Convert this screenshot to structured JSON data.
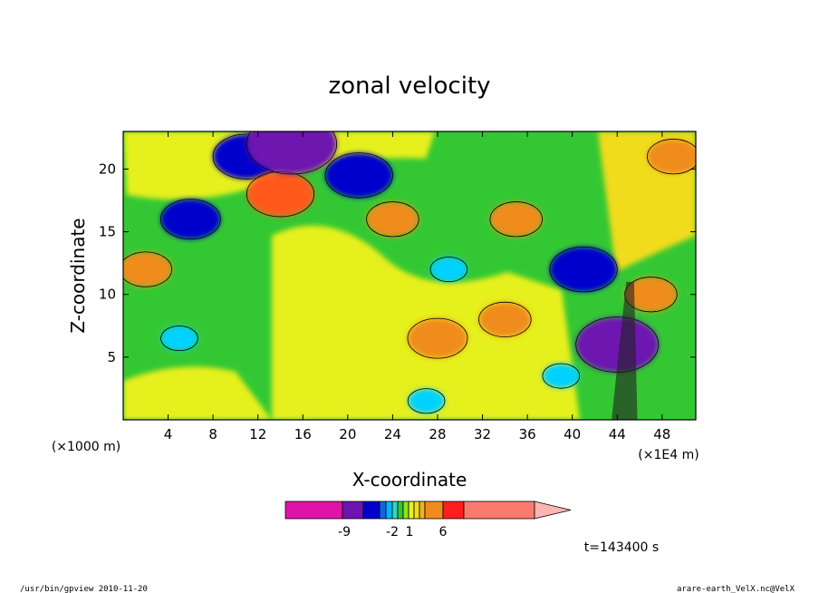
{
  "chart_data": {
    "type": "heatmap",
    "title": "zonal velocity",
    "xlabel": "X-coordinate",
    "ylabel": "Z-coordinate",
    "x_unit": "(×1E4 m)",
    "y_unit": "(×1000 m)",
    "xlim": [
      0,
      51
    ],
    "ylim": [
      0,
      23
    ],
    "x_ticks": [
      4,
      8,
      12,
      16,
      20,
      24,
      28,
      32,
      36,
      40,
      44,
      48
    ],
    "y_ticks": [
      5,
      10,
      15,
      20
    ],
    "colorbar": {
      "tick_labels": [
        "-9",
        "-2",
        "1",
        "6"
      ],
      "colors": [
        "#e013a8",
        "#6d13b0",
        "#0000cc",
        "#1464e0",
        "#00b4ff",
        "#33d2c8",
        "#33c833",
        "#8ce61e",
        "#e6f01e",
        "#f0dc1e",
        "#f0b41e",
        "#f08c1e",
        "#ff1e1e",
        "#fa7a6e",
        "#ffb4b4"
      ]
    },
    "timestamp": "t=143400 s",
    "features": [
      {
        "x": 2,
        "z": 12,
        "u": 4
      },
      {
        "x": 6,
        "z": 16,
        "u": -5
      },
      {
        "x": 11,
        "z": 21,
        "u": -6
      },
      {
        "x": 14,
        "z": 18,
        "u": 6
      },
      {
        "x": 15,
        "z": 22,
        "u": -9
      },
      {
        "x": 21,
        "z": 19.5,
        "u": -6
      },
      {
        "x": 24,
        "z": 16,
        "u": 4
      },
      {
        "x": 29,
        "z": 12,
        "u": -2
      },
      {
        "x": 28,
        "z": 6.5,
        "u": 5
      },
      {
        "x": 34,
        "z": 8,
        "u": 4
      },
      {
        "x": 35,
        "z": 16,
        "u": 4
      },
      {
        "x": 41,
        "z": 12,
        "u": -6
      },
      {
        "x": 44,
        "z": 6,
        "u": -8
      },
      {
        "x": 47,
        "z": 10,
        "u": 4
      },
      {
        "x": 49,
        "z": 21,
        "u": 4
      },
      {
        "x": 5,
        "z": 6.5,
        "u": -2
      },
      {
        "x": 27,
        "z": 1.5,
        "u": -2
      },
      {
        "x": 39,
        "z": 3.5,
        "u": -2
      }
    ]
  },
  "footer": {
    "left": "/usr/bin/gpview   2010-11-20",
    "right": "arare-earth_VelX.nc@VelX"
  }
}
